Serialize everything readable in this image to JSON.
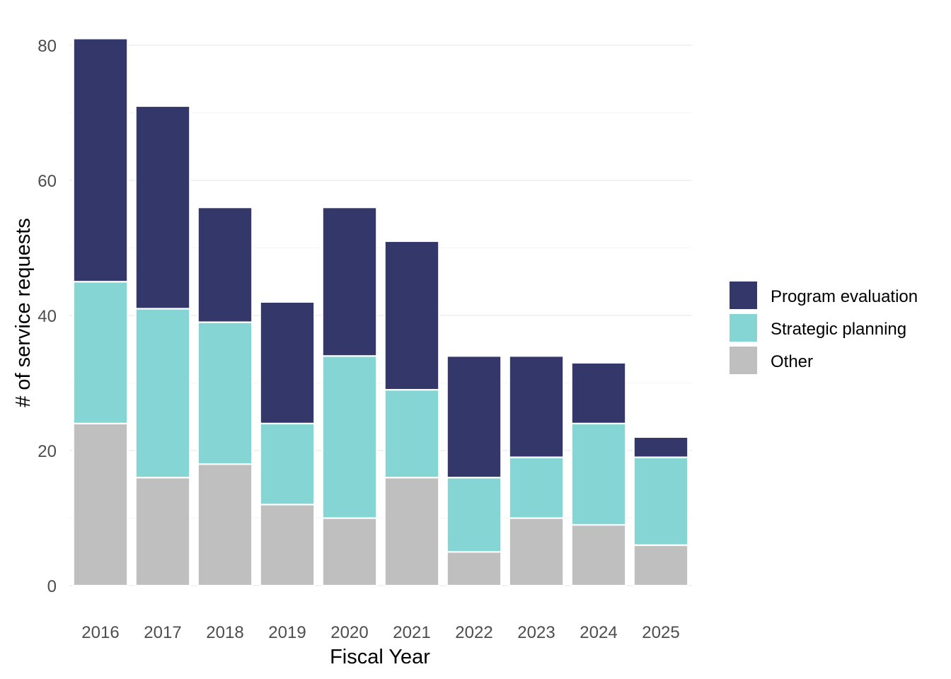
{
  "chart_data": {
    "type": "bar",
    "stacked": true,
    "title": "",
    "xlabel": "Fiscal Year",
    "ylabel": "# of service requests",
    "ylim": [
      0,
      82
    ],
    "yticks": [
      "0",
      "20",
      "40",
      "60",
      "80"
    ],
    "grid": true,
    "legend_position": "right",
    "categories": [
      "2016",
      "2017",
      "2018",
      "2019",
      "2020",
      "2021",
      "2022",
      "2023",
      "2024",
      "2025"
    ],
    "series": [
      {
        "name": "Other",
        "color": "#bfbfbf",
        "values": [
          24,
          16,
          18,
          12,
          10,
          16,
          5,
          10,
          9,
          6
        ]
      },
      {
        "name": "Strategic planning",
        "color": "#85d5d5",
        "values": [
          21,
          25,
          21,
          12,
          24,
          13,
          11,
          9,
          15,
          13
        ]
      },
      {
        "name": "Program evaluation",
        "color": "#34376a",
        "values": [
          36,
          30,
          17,
          18,
          22,
          22,
          18,
          15,
          9,
          3
        ]
      }
    ],
    "legend_order": [
      "Program evaluation",
      "Strategic planning",
      "Other"
    ]
  }
}
